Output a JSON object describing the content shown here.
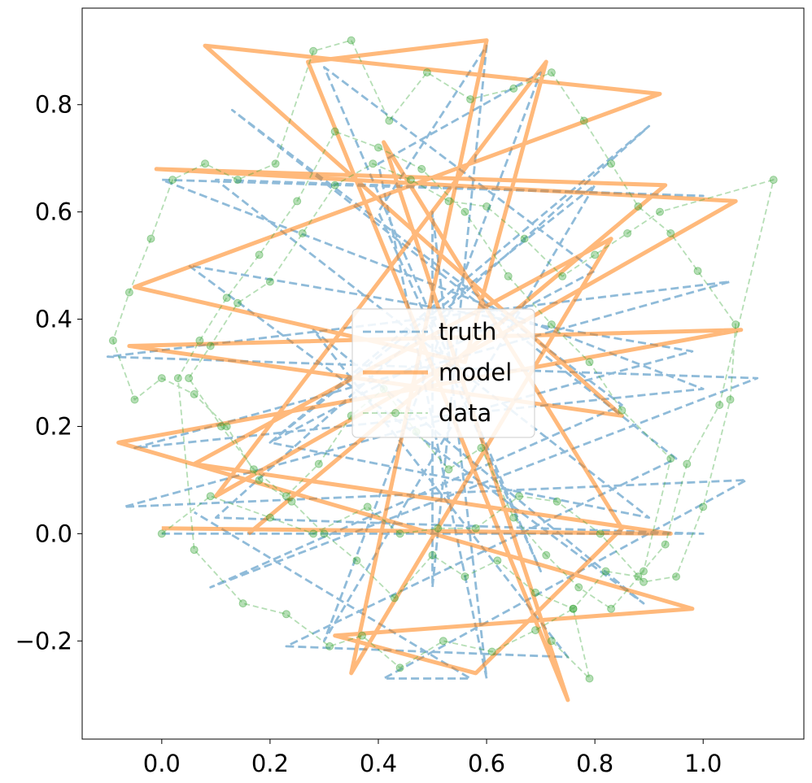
{
  "chart_data": {
    "type": "line",
    "title": "",
    "xlabel": "",
    "ylabel": "",
    "xlim": [
      -0.147,
      1.186
    ],
    "ylim": [
      -0.383,
      0.98
    ],
    "xticks": [
      0.0,
      0.2,
      0.4,
      0.6,
      0.8,
      1.0
    ],
    "xtick_labels": [
      "0.0",
      "0.2",
      "0.4",
      "0.6",
      "0.8",
      "1.0"
    ],
    "yticks": [
      -0.2,
      0.0,
      0.2,
      0.4,
      0.6,
      0.8
    ],
    "ytick_labels": [
      "−0.2",
      "0.0",
      "0.2",
      "0.4",
      "0.6",
      "0.8"
    ],
    "grid": false,
    "legend_position": "center",
    "series": [
      {
        "name": "truth",
        "style": "dashed",
        "color": "#1f77b4",
        "x": [
          0.0,
          1.0,
          0.1,
          0.9,
          0.2,
          0.8,
          0.3,
          0.7,
          0.4,
          0.6,
          0.5,
          0.5,
          0.6,
          0.4,
          0.7,
          0.3,
          0.8,
          0.2,
          0.9,
          0.1,
          1.0,
          0.0,
          1.0,
          -0.05,
          1.05,
          -0.1,
          1.1,
          0.09,
          0.85,
          0.13,
          0.95,
          0.23,
          0.75,
          0.28,
          0.89,
          0.05,
          0.98,
          -0.07,
          1.08,
          0.41,
          0.57,
          0.06
        ],
        "y": [
          0.0,
          0.0,
          0.03,
          0.76,
          0.17,
          0.49,
          0.87,
          -0.07,
          0.6,
          0.91,
          -0.1,
          0.6,
          -0.27,
          0.69,
          0.86,
          -0.2,
          0.65,
          0.17,
          0.03,
          0.66,
          0.63,
          0.66,
          0.27,
          0.16,
          0.47,
          0.33,
          0.29,
          -0.1,
          0.24,
          0.79,
          0.14,
          -0.21,
          -0.23,
          0.38,
          -0.13,
          0.5,
          0.34,
          0.05,
          0.1,
          -0.27,
          -0.27,
          0.04
        ]
      },
      {
        "name": "model",
        "style": "solid",
        "color": "#ff7f0e",
        "x": [
          0.0,
          0.94,
          0.06,
          0.83,
          0.35,
          0.6,
          0.27,
          0.75,
          0.41,
          0.85,
          0.58,
          0.32,
          0.98,
          -0.08,
          1.07,
          -0.06,
          0.85,
          0.08,
          0.92,
          -0.05,
          0.56,
          0.71,
          0.1,
          1.06,
          -0.01,
          0.93,
          0.16
        ],
        "y": [
          0.01,
          0.0,
          0.13,
          0.55,
          -0.26,
          0.92,
          0.88,
          -0.31,
          0.73,
          0.01,
          -0.26,
          -0.19,
          -0.14,
          0.17,
          0.38,
          0.35,
          0.22,
          0.91,
          0.82,
          0.46,
          0.32,
          0.88,
          0.07,
          0.62,
          0.68,
          0.65,
          0.0
        ]
      },
      {
        "name": "data",
        "style": "dashed-markers",
        "color": "#2ca02c",
        "x": [
          0.0,
          0.09,
          0.2,
          0.28,
          0.38,
          0.44,
          0.51,
          0.58,
          0.66,
          0.73,
          0.81,
          0.89,
          0.95,
          1.0,
          1.05,
          1.06,
          0.99,
          0.94,
          0.88,
          0.83,
          0.78,
          0.72,
          0.65,
          0.57,
          0.49,
          0.42,
          0.35,
          0.28,
          0.21,
          0.14,
          0.08,
          0.02,
          -0.02,
          -0.06,
          -0.09,
          -0.05,
          0.0,
          0.06,
          0.12,
          0.18,
          0.24,
          0.3,
          0.36,
          0.43,
          0.5,
          0.56,
          0.62,
          0.69,
          0.76,
          0.82,
          0.88,
          0.93,
          0.97,
          1.03,
          1.13,
          0.92,
          0.86,
          0.8,
          0.74,
          0.67,
          0.6,
          0.53,
          0.46,
          0.39,
          0.32,
          0.26,
          0.2,
          0.14,
          0.09,
          0.05,
          0.11,
          0.17,
          0.23,
          0.29,
          0.35,
          0.41,
          0.47,
          0.53,
          0.59,
          0.65,
          0.71,
          0.77,
          0.83,
          0.89,
          0.94,
          0.85,
          0.79,
          0.72,
          0.64,
          0.56,
          0.48,
          0.4,
          0.32,
          0.25,
          0.18,
          0.12,
          0.07,
          0.03,
          0.06,
          0.15,
          0.23,
          0.31,
          0.37,
          0.44,
          0.52,
          0.61,
          0.69,
          0.76,
          0.79,
          0.72
        ],
        "y": [
          0.0,
          0.07,
          0.03,
          0.0,
          0.05,
          0.0,
          0.01,
          0.01,
          0.07,
          0.06,
          0.0,
          -0.09,
          -0.08,
          0.05,
          0.25,
          0.39,
          0.49,
          0.56,
          0.61,
          0.69,
          0.77,
          0.86,
          0.83,
          0.81,
          0.86,
          0.77,
          0.92,
          0.9,
          0.69,
          0.66,
          0.69,
          0.66,
          0.55,
          0.45,
          0.36,
          0.25,
          0.29,
          0.26,
          0.2,
          0.1,
          0.06,
          0.0,
          -0.05,
          -0.12,
          -0.04,
          -0.08,
          -0.05,
          -0.11,
          -0.14,
          -0.07,
          -0.08,
          -0.02,
          0.13,
          0.24,
          0.66,
          0.6,
          0.56,
          0.52,
          0.48,
          0.55,
          0.61,
          0.62,
          0.66,
          0.69,
          0.65,
          0.56,
          0.47,
          0.43,
          0.35,
          0.29,
          0.2,
          0.12,
          0.07,
          0.13,
          0.22,
          0.27,
          0.19,
          0.12,
          0.16,
          0.03,
          -0.04,
          -0.1,
          -0.14,
          -0.07,
          0.14,
          0.23,
          0.32,
          0.39,
          0.48,
          0.6,
          0.68,
          0.72,
          0.75,
          0.62,
          0.52,
          0.44,
          0.36,
          0.29,
          -0.03,
          -0.13,
          -0.15,
          -0.21,
          -0.19,
          -0.25,
          -0.2,
          -0.22,
          -0.18,
          -0.14,
          -0.27,
          -0.2
        ]
      }
    ]
  }
}
